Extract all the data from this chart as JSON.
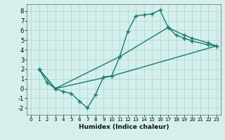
{
  "xlabel": "Humidex (Indice chaleur)",
  "background_color": "#d4efec",
  "grid_color": "#b8dbd8",
  "line_color": "#1a7a6e",
  "xlim": [
    -0.5,
    23.5
  ],
  "ylim": [
    -2.7,
    8.7
  ],
  "xticks": [
    0,
    1,
    2,
    3,
    4,
    5,
    6,
    7,
    8,
    9,
    10,
    11,
    12,
    13,
    14,
    15,
    16,
    17,
    18,
    19,
    20,
    21,
    22,
    23
  ],
  "yticks": [
    -2,
    -1,
    0,
    1,
    2,
    3,
    4,
    5,
    6,
    7,
    8
  ],
  "line1_x": [
    1,
    2,
    3,
    4,
    5,
    6,
    7,
    8,
    9,
    10,
    11,
    12,
    13,
    14,
    15,
    16,
    17,
    18,
    19,
    20,
    22,
    23
  ],
  "line1_y": [
    2.0,
    0.6,
    0.0,
    -0.3,
    -0.5,
    -1.3,
    -2.0,
    -0.6,
    1.2,
    1.3,
    3.3,
    5.9,
    7.5,
    7.6,
    7.7,
    8.1,
    6.3,
    5.5,
    5.2,
    4.9,
    4.5,
    4.4
  ],
  "line2_x": [
    1,
    3,
    10,
    23
  ],
  "line2_y": [
    2.0,
    0.0,
    1.3,
    4.4
  ],
  "line3_x": [
    1,
    3,
    11,
    17,
    19,
    20,
    22,
    23
  ],
  "line3_y": [
    2.0,
    0.0,
    3.3,
    6.3,
    5.5,
    5.2,
    4.7,
    4.4
  ],
  "marker": "+",
  "marker_size": 4,
  "marker_edge_width": 1.0,
  "line_width": 1.0,
  "xlabel_fontsize": 6.5,
  "tick_fontsize_x": 5,
  "tick_fontsize_y": 6
}
